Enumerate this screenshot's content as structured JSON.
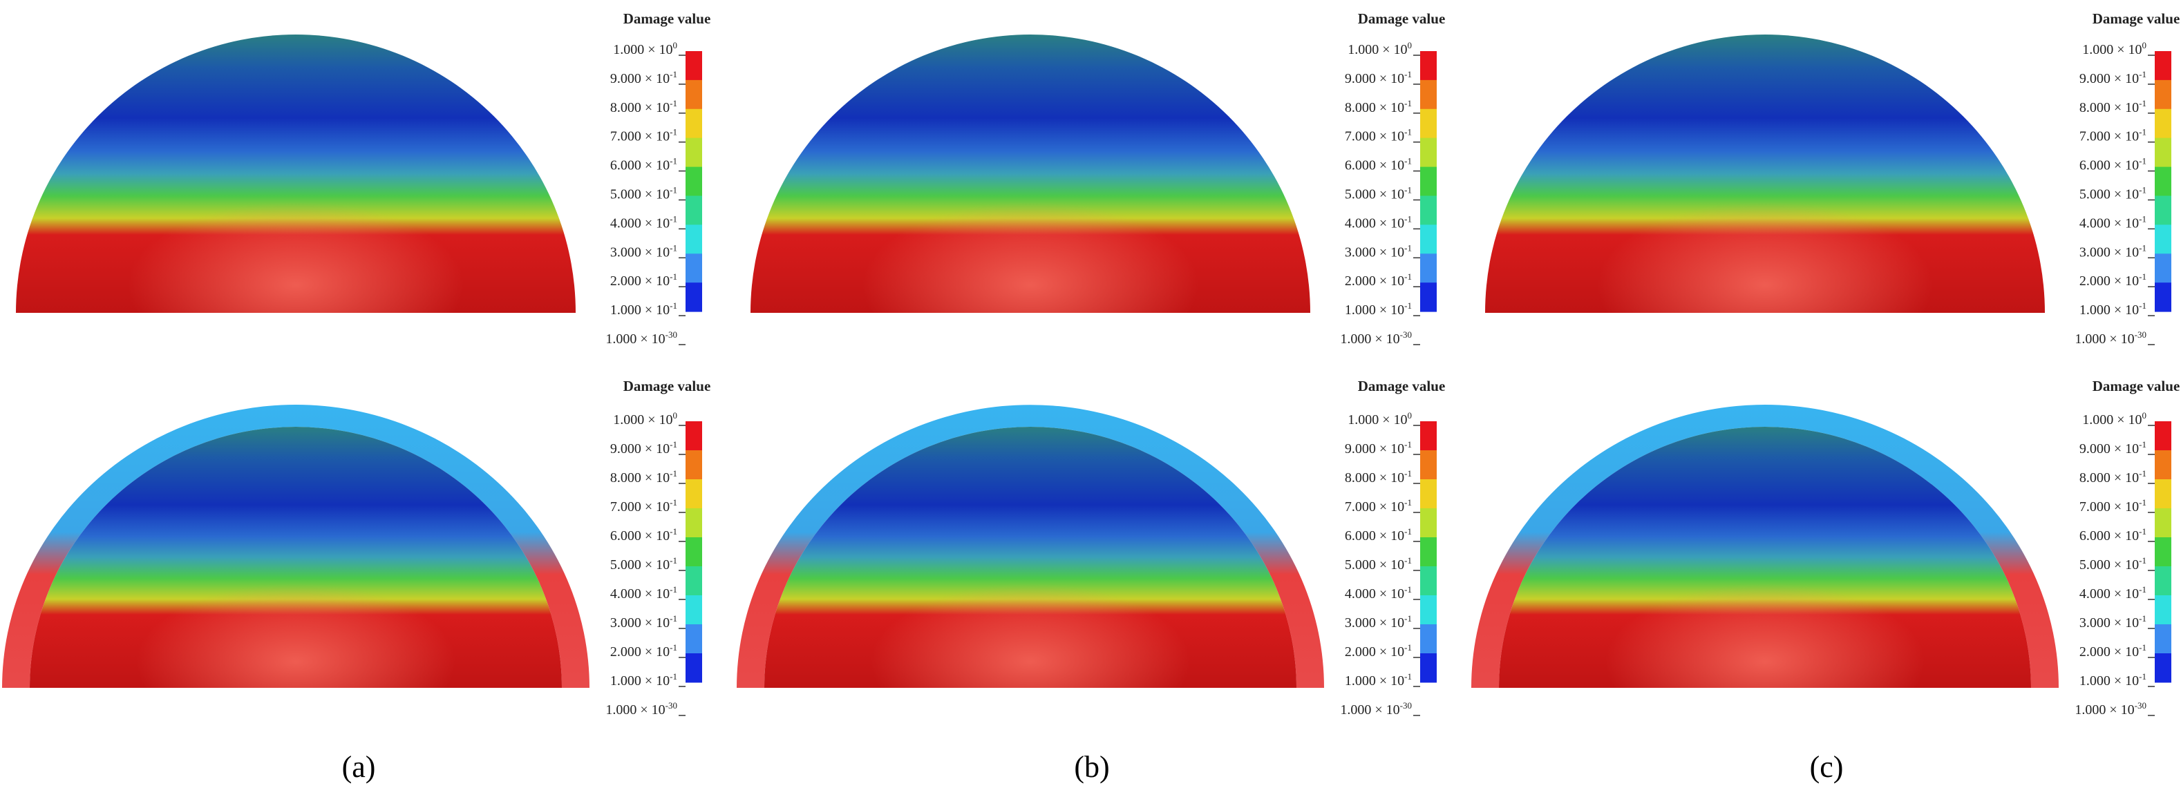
{
  "panels": [
    {
      "legend": {
        "title": "Damage value",
        "ticks": [
          {
            "base": "1.000 × 10",
            "exp": "0"
          },
          {
            "base": "9.000 × 10",
            "exp": "-1"
          },
          {
            "base": "8.000 × 10",
            "exp": "-1"
          },
          {
            "base": "7.000 × 10",
            "exp": "-1"
          },
          {
            "base": "6.000 × 10",
            "exp": "-1"
          },
          {
            "base": "5.000 × 10",
            "exp": "-1"
          },
          {
            "base": "4.000 × 10",
            "exp": "-1"
          },
          {
            "base": "3.000 × 10",
            "exp": "-1"
          },
          {
            "base": "2.000 × 10",
            "exp": "-1"
          },
          {
            "base": "1.000 × 10",
            "exp": "-1"
          },
          {
            "base": "1.000 × 10",
            "exp": "-30"
          }
        ]
      }
    },
    {
      "legend": {
        "title": "Damage value",
        "ticks": [
          {
            "base": "1.000 × 10",
            "exp": "0"
          },
          {
            "base": "9.000 × 10",
            "exp": "-1"
          },
          {
            "base": "8.000 × 10",
            "exp": "-1"
          },
          {
            "base": "7.000 × 10",
            "exp": "-1"
          },
          {
            "base": "6.000 × 10",
            "exp": "-1"
          },
          {
            "base": "5.000 × 10",
            "exp": "-1"
          },
          {
            "base": "4.000 × 10",
            "exp": "-1"
          },
          {
            "base": "3.000 × 10",
            "exp": "-1"
          },
          {
            "base": "2.000 × 10",
            "exp": "-1"
          },
          {
            "base": "1.000 × 10",
            "exp": "-1"
          },
          {
            "base": "1.000 × 10",
            "exp": "-30"
          }
        ]
      }
    },
    {
      "legend": {
        "title": "Damage value",
        "ticks": [
          {
            "base": "1.000 × 10",
            "exp": "0"
          },
          {
            "base": "9.000 × 10",
            "exp": "-1"
          },
          {
            "base": "8.000 × 10",
            "exp": "-1"
          },
          {
            "base": "7.000 × 10",
            "exp": "-1"
          },
          {
            "base": "6.000 × 10",
            "exp": "-1"
          },
          {
            "base": "5.000 × 10",
            "exp": "-1"
          },
          {
            "base": "4.000 × 10",
            "exp": "-1"
          },
          {
            "base": "3.000 × 10",
            "exp": "-1"
          },
          {
            "base": "2.000 × 10",
            "exp": "-1"
          },
          {
            "base": "1.000 × 10",
            "exp": "-1"
          },
          {
            "base": "1.000 × 10",
            "exp": "-30"
          }
        ]
      }
    },
    {
      "legend": {
        "title": "Damage value",
        "ticks": [
          {
            "base": "1.000 × 10",
            "exp": "0"
          },
          {
            "base": "9.000 × 10",
            "exp": "-1"
          },
          {
            "base": "8.000 × 10",
            "exp": "-1"
          },
          {
            "base": "7.000 × 10",
            "exp": "-1"
          },
          {
            "base": "6.000 × 10",
            "exp": "-1"
          },
          {
            "base": "5.000 × 10",
            "exp": "-1"
          },
          {
            "base": "4.000 × 10",
            "exp": "-1"
          },
          {
            "base": "3.000 × 10",
            "exp": "-1"
          },
          {
            "base": "2.000 × 10",
            "exp": "-1"
          },
          {
            "base": "1.000 × 10",
            "exp": "-1"
          },
          {
            "base": "1.000 × 10",
            "exp": "-30"
          }
        ]
      }
    },
    {
      "legend": {
        "title": "Damage value",
        "ticks": [
          {
            "base": "1.000 × 10",
            "exp": "0"
          },
          {
            "base": "9.000 × 10",
            "exp": "-1"
          },
          {
            "base": "8.000 × 10",
            "exp": "-1"
          },
          {
            "base": "7.000 × 10",
            "exp": "-1"
          },
          {
            "base": "6.000 × 10",
            "exp": "-1"
          },
          {
            "base": "5.000 × 10",
            "exp": "-1"
          },
          {
            "base": "4.000 × 10",
            "exp": "-1"
          },
          {
            "base": "3.000 × 10",
            "exp": "-1"
          },
          {
            "base": "2.000 × 10",
            "exp": "-1"
          },
          {
            "base": "1.000 × 10",
            "exp": "-1"
          },
          {
            "base": "1.000 × 10",
            "exp": "-30"
          }
        ]
      }
    },
    {
      "legend": {
        "title": "Damage value",
        "ticks": [
          {
            "base": "1.000 × 10",
            "exp": "0"
          },
          {
            "base": "9.000 × 10",
            "exp": "-1"
          },
          {
            "base": "8.000 × 10",
            "exp": "-1"
          },
          {
            "base": "7.000 × 10",
            "exp": "-1"
          },
          {
            "base": "6.000 × 10",
            "exp": "-1"
          },
          {
            "base": "5.000 × 10",
            "exp": "-1"
          },
          {
            "base": "4.000 × 10",
            "exp": "-1"
          },
          {
            "base": "3.000 × 10",
            "exp": "-1"
          },
          {
            "base": "2.000 × 10",
            "exp": "-1"
          },
          {
            "base": "1.000 × 10",
            "exp": "-1"
          },
          {
            "base": "1.000 × 10",
            "exp": "-30"
          }
        ]
      }
    }
  ],
  "captions": [
    "(a)",
    "(b)",
    "(c)"
  ]
}
